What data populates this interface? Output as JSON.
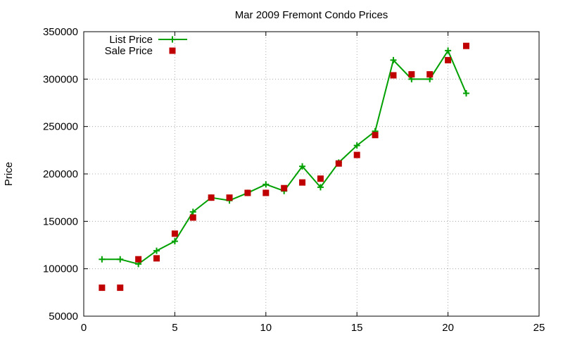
{
  "chart_data": {
    "type": "line",
    "title": "Mar 2009 Fremont Condo Prices",
    "xlabel": "",
    "ylabel": "Price",
    "xlim": [
      0,
      25
    ],
    "ylim": [
      50000,
      350000
    ],
    "xticks": [
      0,
      5,
      10,
      15,
      20,
      25
    ],
    "yticks": [
      50000,
      100000,
      150000,
      200000,
      250000,
      300000,
      350000
    ],
    "grid": true,
    "legend_position": "top-left",
    "series": [
      {
        "name": "List Price",
        "style": "line+plus",
        "color": "#00a000",
        "x": [
          1,
          2,
          3,
          4,
          5,
          6,
          7,
          8,
          9,
          10,
          11,
          12,
          13,
          14,
          15,
          16,
          17,
          18,
          19,
          20,
          21
        ],
        "y": [
          110000,
          110000,
          105000,
          119000,
          129000,
          160000,
          175000,
          172000,
          180000,
          189000,
          182000,
          208000,
          186000,
          212000,
          230000,
          245000,
          320000,
          300000,
          300000,
          330000,
          285000
        ]
      },
      {
        "name": "Sale Price",
        "style": "square",
        "color": "#c00000",
        "x": [
          1,
          2,
          3,
          4,
          5,
          6,
          7,
          8,
          9,
          10,
          11,
          12,
          13,
          14,
          15,
          16,
          17,
          18,
          19,
          20,
          21
        ],
        "y": [
          80000,
          80000,
          110000,
          111000,
          137000,
          154000,
          175000,
          175000,
          180000,
          180000,
          185000,
          191000,
          195000,
          211000,
          220000,
          241000,
          304000,
          305000,
          305000,
          320000,
          335000
        ]
      }
    ]
  }
}
